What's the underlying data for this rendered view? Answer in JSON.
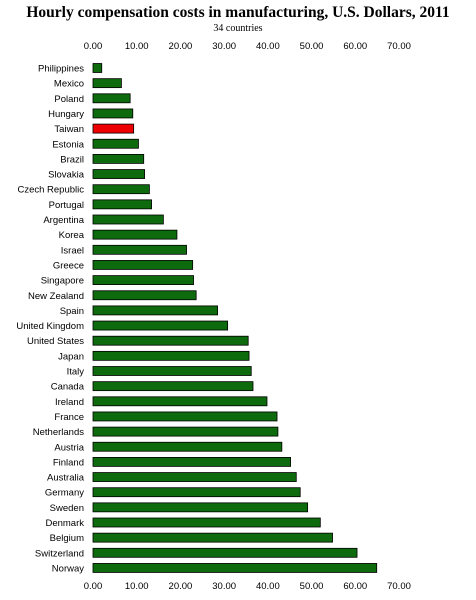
{
  "chart_data": {
    "type": "bar",
    "orientation": "horizontal",
    "title": "Hourly compensation costs in manufacturing, U.S. Dollars, 2011",
    "subtitle": "34 countries",
    "xlim": [
      0,
      70
    ],
    "tick_labels": [
      "0.00",
      "10.00",
      "20.00",
      "30.00",
      "40.00",
      "50.00",
      "60.00",
      "70.00"
    ],
    "tick_values": [
      0,
      10,
      20,
      30,
      40,
      50,
      60,
      70
    ],
    "grid": false,
    "categories": [
      "Philippines",
      "Mexico",
      "Poland",
      "Hungary",
      "Taiwan",
      "Estonia",
      "Brazil",
      "Slovakia",
      "Czech Republic",
      "Portugal",
      "Argentina",
      "Korea",
      "Israel",
      "Greece",
      "Singapore",
      "New Zealand",
      "Spain",
      "United Kingdom",
      "United States",
      "Japan",
      "Italy",
      "Canada",
      "Ireland",
      "France",
      "Netherlands",
      "Austria",
      "Finland",
      "Australia",
      "Germany",
      "Sweden",
      "Denmark",
      "Belgium",
      "Switzerland",
      "Norway"
    ],
    "values": [
      2.0,
      6.5,
      8.5,
      9.1,
      9.3,
      10.4,
      11.6,
      11.8,
      12.9,
      13.4,
      16.1,
      19.2,
      21.4,
      22.8,
      23.0,
      23.6,
      28.5,
      30.8,
      35.5,
      35.7,
      36.2,
      36.6,
      39.8,
      42.1,
      42.3,
      43.2,
      45.2,
      46.5,
      47.4,
      49.1,
      52.0,
      54.8,
      60.4,
      64.9
    ],
    "bar_color": "#0d6a0d",
    "highlight": {
      "category": "Taiwan",
      "color": "#ee0000"
    }
  }
}
